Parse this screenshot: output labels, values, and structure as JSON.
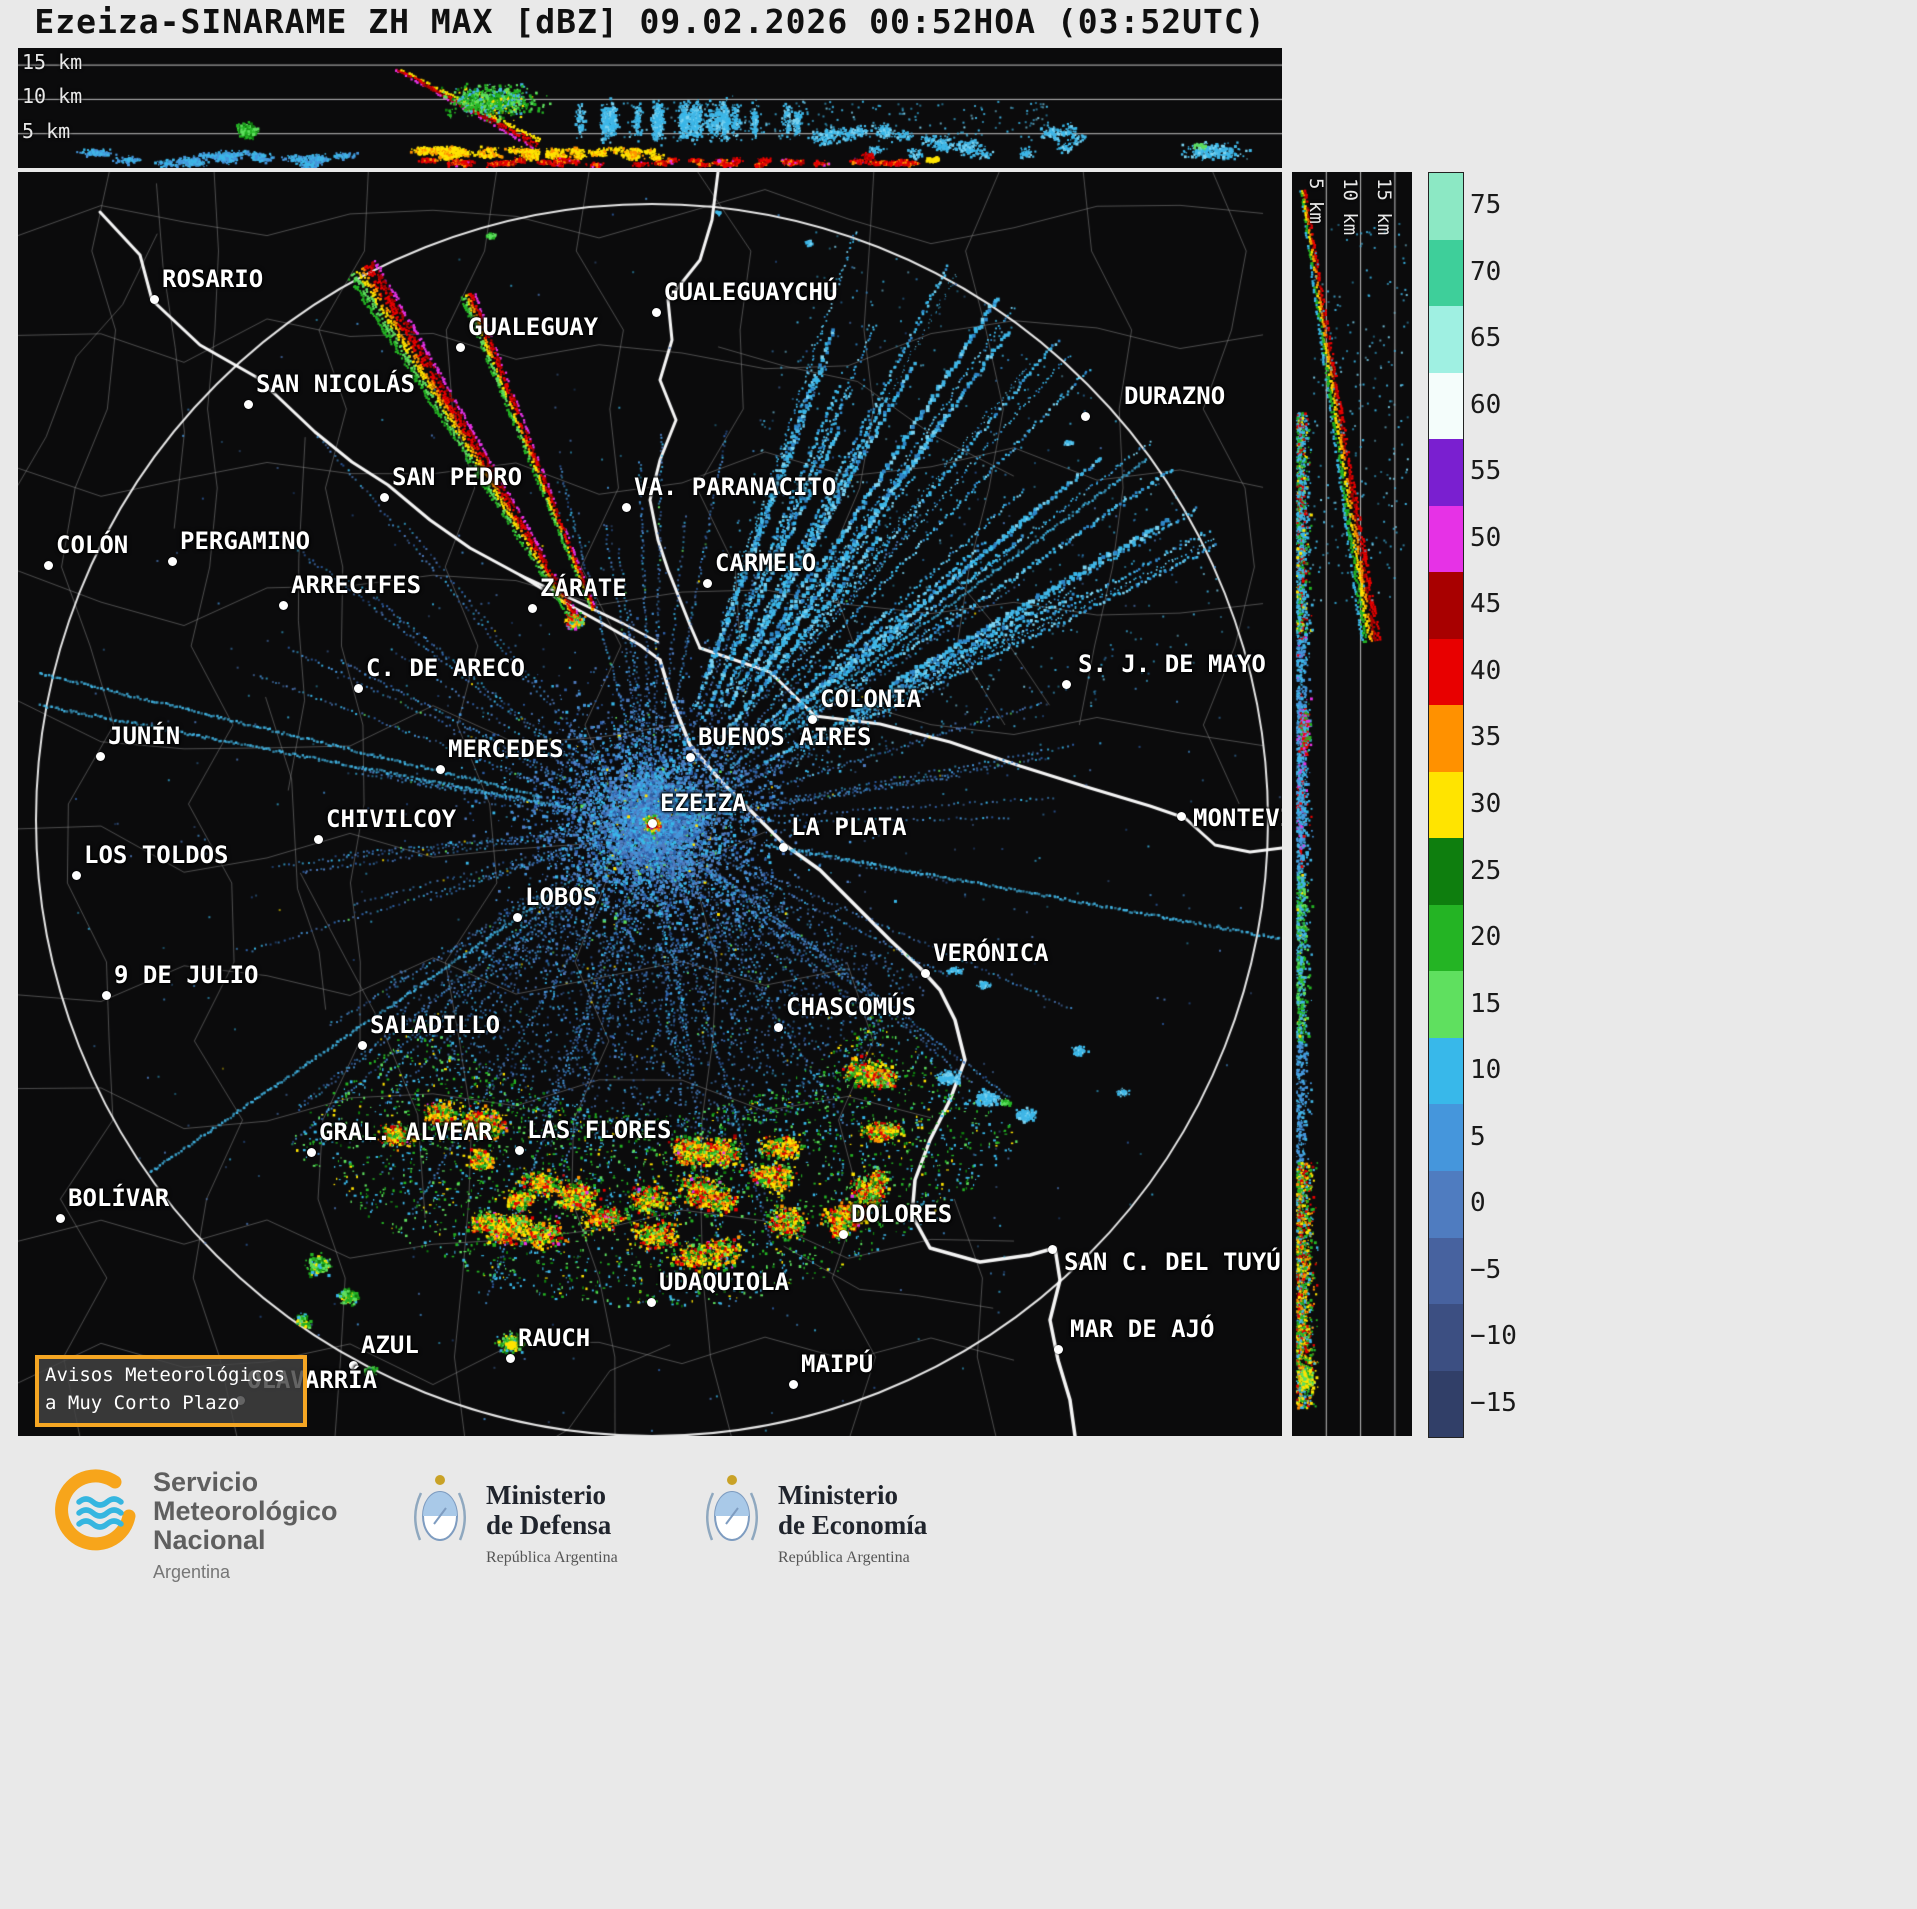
{
  "title": "Ezeiza-SINARAME ZH MAX [dBZ] 09.02.2026 00:52HOA (03:52UTC)",
  "panels": {
    "top": {
      "labels": [
        "15 km",
        "10 km",
        "5 km"
      ]
    },
    "right": {
      "labels": [
        "5 km",
        "10 km",
        "15 km"
      ]
    }
  },
  "colorbar": {
    "unit": "dBZ",
    "ticks": [
      "75",
      "70",
      "65",
      "60",
      "55",
      "50",
      "45",
      "40",
      "35",
      "30",
      "25",
      "20",
      "15",
      "10",
      "5",
      "0",
      "−5",
      "−10",
      "−15"
    ],
    "segments": [
      "#8ce8c4",
      "#3ecf9a",
      "#9ff0e2",
      "#f4fdfb",
      "#7a1fd0",
      "#e632e6",
      "#a80000",
      "#e80000",
      "#ff9100",
      "#ffe400",
      "#0e7e0e",
      "#24b424",
      "#5fe05f",
      "#38b8ea",
      "#4596dc",
      "#4f7cc0",
      "#47629f",
      "#3c4f82",
      "#313f68"
    ]
  },
  "map": {
    "alert_box": {
      "line1": "Avisos Meteorológicos",
      "line2": "a Muy Corto Plazo",
      "border_color": "#f5a623"
    },
    "cities": [
      {
        "name": "ROSARIO",
        "dot": [
          136,
          127
        ],
        "label": [
          144,
          95
        ]
      },
      {
        "name": "GUALEGUAYCHÚ",
        "dot": [
          638,
          140
        ],
        "label": [
          646,
          108
        ]
      },
      {
        "name": "GUALEGUAY",
        "dot": [
          442,
          175
        ],
        "label": [
          450,
          143
        ]
      },
      {
        "name": "SAN NICOLÁS",
        "dot": [
          230,
          232
        ],
        "label": [
          238,
          200
        ]
      },
      {
        "name": "DURAZNO",
        "dot": [
          1067,
          244
        ],
        "label": [
          1106,
          212
        ]
      },
      {
        "name": "SAN PEDRO",
        "dot": [
          366,
          325
        ],
        "label": [
          374,
          293
        ]
      },
      {
        "name": "VA. PARANACITO",
        "dot": [
          608,
          335
        ],
        "label": [
          616,
          303
        ]
      },
      {
        "name": "COLÓN",
        "dot": [
          30,
          393
        ],
        "label": [
          38,
          361
        ]
      },
      {
        "name": "PERGAMINO",
        "dot": [
          154,
          389
        ],
        "label": [
          162,
          357
        ]
      },
      {
        "name": "ARRECIFES",
        "dot": [
          265,
          433
        ],
        "label": [
          273,
          401
        ]
      },
      {
        "name": "ZÁRATE",
        "dot": [
          514,
          436
        ],
        "label": [
          522,
          404
        ]
      },
      {
        "name": "CARMELO",
        "dot": [
          689,
          411
        ],
        "label": [
          697,
          379
        ]
      },
      {
        "name": "C. DE ARECO",
        "dot": [
          340,
          516
        ],
        "label": [
          348,
          484
        ]
      },
      {
        "name": "S. J. DE MAYO",
        "dot": [
          1048,
          512
        ],
        "label": [
          1060,
          480
        ]
      },
      {
        "name": "COLONIA",
        "dot": [
          794,
          547
        ],
        "label": [
          802,
          515
        ]
      },
      {
        "name": "JUNÍN",
        "dot": [
          82,
          584
        ],
        "label": [
          90,
          552
        ]
      },
      {
        "name": "MERCEDES",
        "dot": [
          422,
          597
        ],
        "label": [
          430,
          565
        ]
      },
      {
        "name": "BUENOS AIRES",
        "dot": [
          672,
          585
        ],
        "label": [
          680,
          553
        ]
      },
      {
        "name": "EZEIZA",
        "dot": [
          634,
          651
        ],
        "label": [
          642,
          619
        ]
      },
      {
        "name": "CHIVILCOY",
        "dot": [
          300,
          667
        ],
        "label": [
          308,
          635
        ]
      },
      {
        "name": "LA PLATA",
        "dot": [
          765,
          675
        ],
        "label": [
          773,
          643
        ]
      },
      {
        "name": "LOS TOLDOS",
        "dot": [
          58,
          703
        ],
        "label": [
          66,
          671
        ]
      },
      {
        "name": "MONTEVIDEO",
        "dot": [
          1163,
          644
        ],
        "label": [
          1175,
          634
        ]
      },
      {
        "name": "LOBOS",
        "dot": [
          499,
          745
        ],
        "label": [
          507,
          713
        ]
      },
      {
        "name": "9 DE JULIO",
        "dot": [
          88,
          823
        ],
        "label": [
          96,
          791
        ]
      },
      {
        "name": "VERÓNICA",
        "dot": [
          907,
          801
        ],
        "label": [
          915,
          769
        ]
      },
      {
        "name": "CHASCOMÚS",
        "dot": [
          760,
          855
        ],
        "label": [
          768,
          823
        ]
      },
      {
        "name": "SALADILLO",
        "dot": [
          344,
          873
        ],
        "label": [
          352,
          841
        ]
      },
      {
        "name": "GRAL. ALVEAR",
        "dot": [
          293,
          980
        ],
        "label": [
          301,
          948
        ]
      },
      {
        "name": "LAS FLORES",
        "dot": [
          501,
          978
        ],
        "label": [
          509,
          946
        ]
      },
      {
        "name": "BOLÍVAR",
        "dot": [
          42,
          1046
        ],
        "label": [
          50,
          1014
        ]
      },
      {
        "name": "DOLORES",
        "dot": [
          825,
          1062
        ],
        "label": [
          833,
          1030
        ]
      },
      {
        "name": "SAN C. DEL TUYÚ",
        "dot": [
          1034,
          1077
        ],
        "label": [
          1046,
          1078
        ]
      },
      {
        "name": "UDAQUIOLA",
        "dot": [
          633,
          1130
        ],
        "label": [
          641,
          1098
        ]
      },
      {
        "name": "AZUL",
        "dot": [
          335,
          1193
        ],
        "label": [
          343,
          1161
        ]
      },
      {
        "name": "RAUCH",
        "dot": [
          492,
          1186
        ],
        "label": [
          500,
          1154
        ]
      },
      {
        "name": "MAR DE AJÓ",
        "dot": [
          1040,
          1177
        ],
        "label": [
          1052,
          1145
        ]
      },
      {
        "name": "MAIPÚ",
        "dot": [
          775,
          1212
        ],
        "label": [
          783,
          1180
        ]
      },
      {
        "name": "OLAVARRÍA",
        "dot": [
          222,
          1228
        ],
        "label": [
          229,
          1196
        ]
      }
    ]
  },
  "footer": {
    "smn": {
      "l1": "Servicio",
      "l2": "Meteorológico",
      "l3": "Nacional",
      "country": "Argentina"
    },
    "defensa": {
      "l1": "Ministerio",
      "l2": "de Defensa",
      "sub": "República Argentina"
    },
    "economia": {
      "l1": "Ministerio",
      "l2": "de Economía",
      "sub": "República Argentina"
    }
  }
}
